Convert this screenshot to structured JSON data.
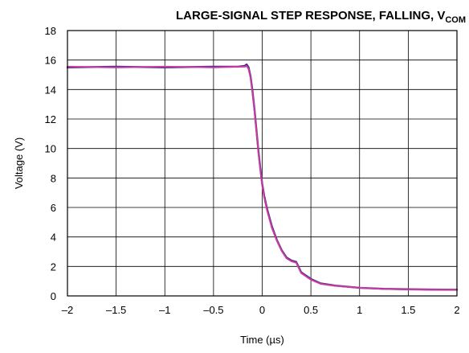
{
  "chart_data": {
    "type": "line",
    "title": "LARGE-SIGNAL STEP RESPONSE, FALLING, V",
    "title_subscript": "COM",
    "xlabel": "Time (µs)",
    "ylabel": "Voltage (V)",
    "xlim": [
      -2,
      2
    ],
    "ylim": [
      0,
      18
    ],
    "grid": true,
    "x_ticks": [
      -2,
      -1.5,
      -1,
      -0.5,
      0,
      0.5,
      1,
      1.5,
      2
    ],
    "x_tick_labels": [
      "–2",
      "–1.5",
      "–1",
      "–0.5",
      "0",
      "0.5",
      "1",
      "1.5",
      "2"
    ],
    "y_ticks": [
      0,
      2,
      4,
      6,
      8,
      10,
      12,
      14,
      16,
      18
    ],
    "y_tick_labels": [
      "0",
      "2",
      "4",
      "6",
      "8",
      "10",
      "12",
      "14",
      "16",
      "18"
    ],
    "series": [
      {
        "color": "#3a2f8c",
        "x": [
          -2,
          -1.5,
          -1.0,
          -0.5,
          -0.25,
          -0.18,
          -0.16,
          -0.14,
          -0.12,
          -0.1,
          -0.08,
          -0.06,
          -0.04,
          -0.02,
          0,
          0.02,
          0.05,
          0.1,
          0.15,
          0.2,
          0.25,
          0.3,
          0.35,
          0.4,
          0.5,
          0.6,
          0.75,
          1.0,
          1.25,
          1.5,
          1.75,
          2.0
        ],
        "y": [
          15.5,
          15.55,
          15.5,
          15.55,
          15.55,
          15.6,
          15.7,
          15.5,
          14.9,
          13.9,
          12.7,
          11.3,
          9.9,
          8.7,
          7.6,
          6.8,
          5.9,
          4.7,
          3.8,
          3.1,
          2.6,
          2.4,
          2.3,
          1.6,
          1.15,
          0.85,
          0.7,
          0.55,
          0.48,
          0.45,
          0.43,
          0.42
        ]
      },
      {
        "color": "#cc3aa0",
        "x": [
          -2,
          -1.5,
          -1.0,
          -0.5,
          -0.25,
          -0.18,
          -0.16,
          -0.14,
          -0.12,
          -0.1,
          -0.08,
          -0.06,
          -0.04,
          -0.02,
          0,
          0.02,
          0.05,
          0.1,
          0.15,
          0.2,
          0.25,
          0.3,
          0.35,
          0.4,
          0.5,
          0.6,
          0.75,
          1.0,
          1.25,
          1.5,
          1.75,
          2.0
        ],
        "y": [
          15.55,
          15.5,
          15.55,
          15.5,
          15.55,
          15.55,
          15.6,
          15.4,
          14.8,
          13.8,
          12.6,
          11.2,
          9.8,
          8.6,
          7.5,
          6.7,
          5.8,
          4.6,
          3.75,
          3.05,
          2.55,
          2.35,
          2.25,
          1.55,
          1.1,
          0.82,
          0.68,
          0.55,
          0.47,
          0.44,
          0.42,
          0.42
        ]
      }
    ]
  }
}
